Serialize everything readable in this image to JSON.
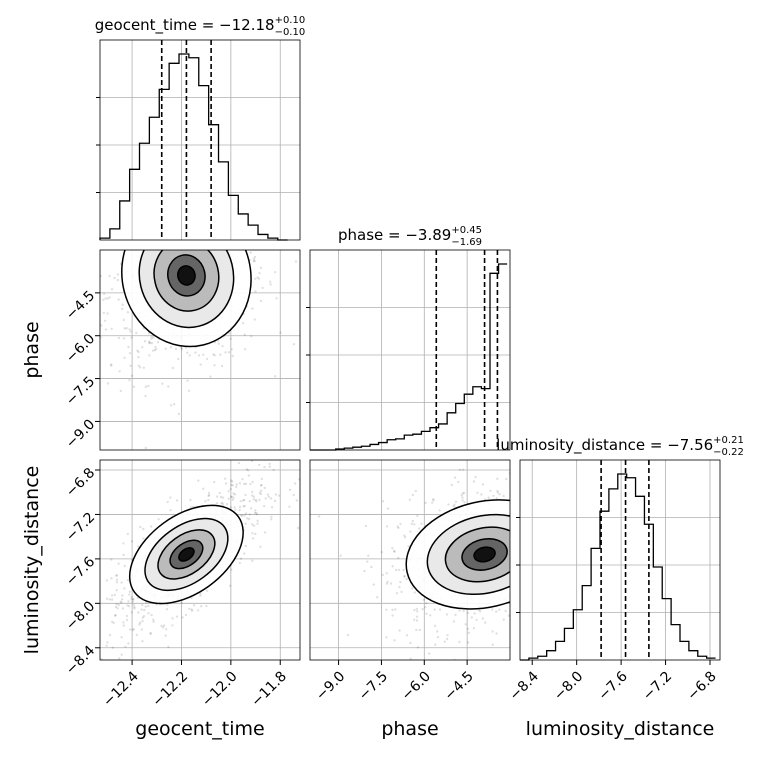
{
  "chart_data": {
    "type": "corner",
    "parameters": [
      {
        "key": "geocent_time",
        "axis_label": "geocent_time",
        "range": [
          -12.53,
          -11.72
        ],
        "ticks": [
          "−12.4",
          "−12.2",
          "−12.0",
          "−11.8"
        ],
        "tick_values": [
          -12.4,
          -12.2,
          -12.0,
          -11.8
        ]
      },
      {
        "key": "phase",
        "axis_label": "phase",
        "range": [
          -10.0,
          -3.0
        ],
        "ticks": [
          "−9.0",
          "−7.5",
          "−6.0",
          "−4.5"
        ],
        "tick_values": [
          -9.0,
          -7.5,
          -6.0,
          -4.5
        ]
      },
      {
        "key": "luminosity_distance",
        "axis_label": "luminosity_distance",
        "range": [
          -8.51,
          -6.71
        ],
        "ticks": [
          "−8.4",
          "−8.0",
          "−7.6",
          "−7.2",
          "−6.8"
        ],
        "tick_values": [
          -8.4,
          -8.0,
          -7.6,
          -7.2,
          -6.8
        ]
      }
    ],
    "titles": [
      {
        "param": "geocent_time",
        "label": "geocent_time = −12.18",
        "plus": "+0.10",
        "minus": "−0.10",
        "median": -12.18,
        "q_low": -12.28,
        "q_high": -12.08
      },
      {
        "param": "phase",
        "label": "phase = −3.89",
        "plus": "+0.45",
        "minus": "−1.69",
        "median": -3.89,
        "q_low": -5.58,
        "q_high": -3.44
      },
      {
        "param": "luminosity_distance",
        "label": "luminosity_distance = −7.56",
        "plus": "+0.21",
        "minus": "−0.22",
        "median": -7.56,
        "q_low": -7.78,
        "q_high": -7.35
      }
    ],
    "histograms": {
      "geocent_time": {
        "edges": [
          -12.53,
          -12.49,
          -12.45,
          -12.41,
          -12.37,
          -12.33,
          -12.29,
          -12.25,
          -12.21,
          -12.17,
          -12.13,
          -12.09,
          -12.05,
          -12.01,
          -11.97,
          -11.93,
          -11.89,
          -11.85,
          -11.81,
          -11.77
        ],
        "counts": [
          0.01,
          0.06,
          0.21,
          0.38,
          0.52,
          0.66,
          0.81,
          0.95,
          1.0,
          0.98,
          0.83,
          0.62,
          0.42,
          0.24,
          0.14,
          0.08,
          0.03,
          0.01,
          0.0
        ]
      },
      "phase": {
        "edges": [
          -10.0,
          -9.7,
          -9.4,
          -9.1,
          -8.8,
          -8.5,
          -8.2,
          -7.9,
          -7.6,
          -7.3,
          -7.0,
          -6.7,
          -6.4,
          -6.1,
          -5.8,
          -5.5,
          -5.2,
          -4.9,
          -4.6,
          -4.3,
          -4.0,
          -3.7,
          -3.4,
          -3.1
        ],
        "counts": [
          0.0,
          0.0,
          0.0,
          0.005,
          0.01,
          0.015,
          0.02,
          0.03,
          0.04,
          0.055,
          0.06,
          0.08,
          0.085,
          0.1,
          0.12,
          0.14,
          0.2,
          0.25,
          0.3,
          0.34,
          0.33,
          0.95,
          1.0
        ]
      },
      "luminosity_distance": {
        "edges": [
          -8.51,
          -8.43,
          -8.35,
          -8.27,
          -8.19,
          -8.11,
          -8.03,
          -7.95,
          -7.87,
          -7.79,
          -7.71,
          -7.63,
          -7.55,
          -7.47,
          -7.39,
          -7.31,
          -7.23,
          -7.15,
          -7.07,
          -6.99,
          -6.91,
          -6.83,
          -6.75
        ],
        "counts": [
          0.0,
          0.01,
          0.02,
          0.05,
          0.1,
          0.17,
          0.27,
          0.4,
          0.6,
          0.8,
          0.92,
          1.0,
          0.98,
          0.88,
          0.73,
          0.5,
          0.33,
          0.19,
          0.1,
          0.05,
          0.02,
          0.01
        ]
      }
    },
    "contours_2d": [
      {
        "x": "geocent_time",
        "y": "phase",
        "correlation": 0.2
      },
      {
        "x": "geocent_time",
        "y": "luminosity_distance",
        "correlation": 0.75
      },
      {
        "x": "phase",
        "y": "luminosity_distance",
        "correlation": 0.3
      }
    ],
    "grid": true,
    "quantile_lines": "dashed"
  }
}
